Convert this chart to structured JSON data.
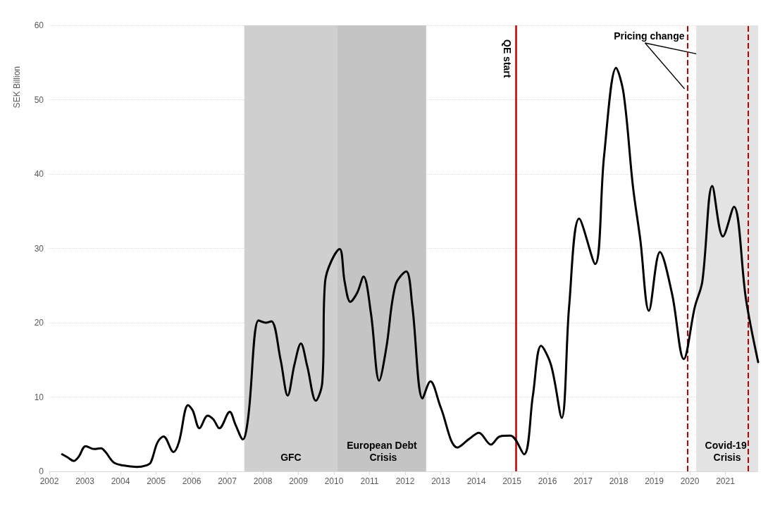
{
  "chart_data": {
    "type": "line",
    "ylabel": "SEK Billion",
    "x": [
      2002.36,
      2002.51,
      2002.69,
      2002.83,
      2003.02,
      2003.26,
      2003.45,
      2003.58,
      2003.81,
      2004.07,
      2004.46,
      2004.72,
      2004.85,
      2005.04,
      2005.21,
      2005.49,
      2005.64,
      2005.9,
      2006.03,
      2006.22,
      2006.45,
      2006.61,
      2006.78,
      2007.07,
      2007.23,
      2007.44,
      2007.59,
      2007.88,
      2008.08,
      2008.24,
      2008.5,
      2008.7,
      2008.89,
      2009.07,
      2009.25,
      2009.49,
      2009.67,
      2009.75,
      2010.16,
      2010.3,
      2010.46,
      2010.65,
      2010.83,
      2011.04,
      2011.27,
      2011.47,
      2011.73,
      2012.03,
      2012.2,
      2012.49,
      2012.71,
      2013.0,
      2013.47,
      2013.81,
      2014.07,
      2014.41,
      2014.66,
      2014.96,
      2015.34,
      2015.59,
      2015.82,
      2016.1,
      2016.4,
      2016.61,
      2016.89,
      2017.34,
      2017.59,
      2017.93,
      2018.14,
      2018.4,
      2018.61,
      2018.85,
      2019.16,
      2019.5,
      2019.83,
      2020.14,
      2020.35,
      2020.63,
      2020.93,
      2021.24,
      2021.58,
      2021.92
    ],
    "series": [
      {
        "color": "#000000",
        "values": [
          2.3,
          1.9,
          1.4,
          2.0,
          3.4,
          3.0,
          3.1,
          2.6,
          1.2,
          0.8,
          0.6,
          0.8,
          1.2,
          3.9,
          4.7,
          2.6,
          3.9,
          8.9,
          8.2,
          5.8,
          7.5,
          7.0,
          5.8,
          8.0,
          6.3,
          4.3,
          7.3,
          20.3,
          20.0,
          20.2,
          15.0,
          10.2,
          14.4,
          17.2,
          14.1,
          9.5,
          11.9,
          25.5,
          29.9,
          25.5,
          22.8,
          24.0,
          26.2,
          21.2,
          12.2,
          16.6,
          25.1,
          26.9,
          22.3,
          9.8,
          12.1,
          8.6,
          3.2,
          4.4,
          5.2,
          3.6,
          4.7,
          4.8,
          2.3,
          10.2,
          16.9,
          14.3,
          7.2,
          22.3,
          34.0,
          27.9,
          42.4,
          54.3,
          50.8,
          38.4,
          31.1,
          21.6,
          29.5,
          23.9,
          15.1,
          22.1,
          25.5,
          38.4,
          31.6,
          35.6,
          23.1,
          14.7
        ]
      }
    ],
    "xlim": [
      2002,
      2021.92
    ],
    "xticks": [
      2002,
      2003,
      2004,
      2005,
      2006,
      2007,
      2008,
      2009,
      2010,
      2011,
      2012,
      2013,
      2014,
      2015,
      2016,
      2017,
      2018,
      2019,
      2020,
      2021
    ],
    "ylim": [
      0,
      60
    ],
    "yticks": [
      0,
      10,
      20,
      30,
      40,
      50,
      60
    ],
    "grid": "y",
    "marker": "none",
    "line_style": "solid",
    "bands": [
      {
        "axis": "x",
        "from": 2007.48,
        "to": 2010.1,
        "label": "GFC",
        "color": "#cfcfcf"
      },
      {
        "axis": "x",
        "from": 2010.1,
        "to": 2012.59,
        "label": "European Debt Crisis",
        "color": "#c4c4c4"
      },
      {
        "axis": "x",
        "from": 2020.18,
        "to": 2021.92,
        "label": "Covid-19 Crisis",
        "color": "#e3e3e3"
      }
    ],
    "ref_lines": [
      {
        "axis": "x",
        "value": 2015.11,
        "label": "QE start",
        "color": "#c00000",
        "line_style": "solid"
      },
      {
        "axis": "x",
        "value": 2019.93,
        "label": null,
        "color": "#c00000",
        "line_style": "dashed"
      },
      {
        "axis": "x",
        "value": 2021.64,
        "label": null,
        "color": "#c00000",
        "line_style": "dashed"
      }
    ],
    "annotations": [
      "Pricing change"
    ]
  }
}
